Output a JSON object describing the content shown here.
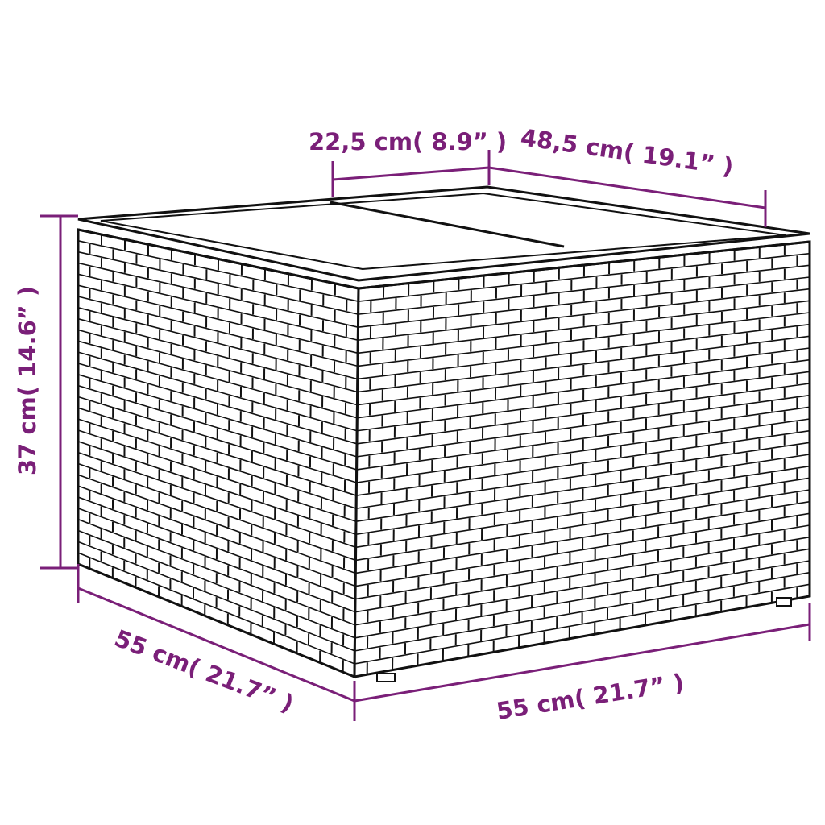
{
  "colors": {
    "dimension": "#7a1f78",
    "outline": "#111111",
    "background": "#ffffff"
  },
  "dimensions": {
    "top_panel_depth": "22,5 cm( 8.9” )",
    "top_panel_width": "48,5 cm( 19.1” )",
    "height": "37 cm( 14.6” )",
    "depth": "55 cm( 21.7” )",
    "width": "55 cm( 21.7” )"
  }
}
